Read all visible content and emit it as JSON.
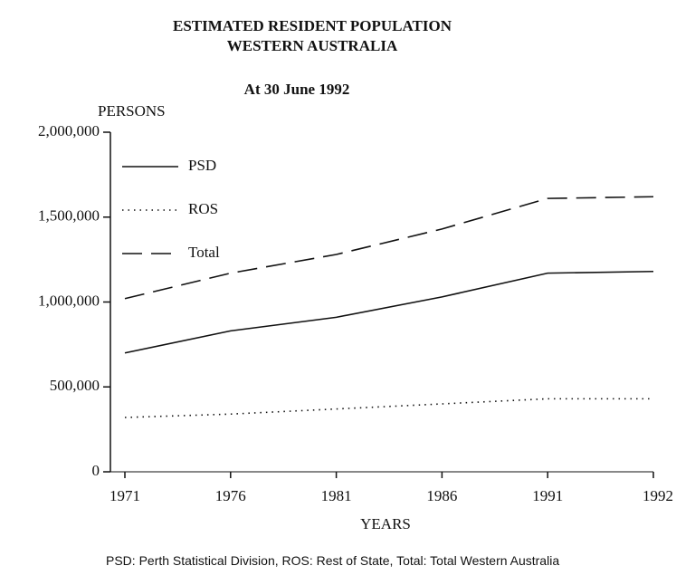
{
  "chart_data": {
    "type": "line",
    "title": [
      "ESTIMATED RESIDENT POPULATION",
      "WESTERN AUSTRALIA"
    ],
    "subtitle": "At 30 June 1992",
    "y_label": "PERSONS",
    "x_label": "YEARS",
    "note": "PSD: Perth Statistical Division, ROS: Rest of State, Total: Total Western Australia",
    "categories": [
      "1971",
      "1976",
      "1981",
      "1986",
      "1991",
      "1992"
    ],
    "series": [
      {
        "name": "PSD",
        "color": "#111111",
        "dash": "solid",
        "values": [
          700000,
          830000,
          910000,
          1030000,
          1170000,
          1180000
        ]
      },
      {
        "name": "ROS",
        "color": "#111111",
        "dash": "dotted",
        "values": [
          320000,
          340000,
          370000,
          400000,
          430000,
          430000
        ]
      },
      {
        "name": "Total",
        "color": "#111111",
        "dash": "dashed",
        "values": [
          1020000,
          1170000,
          1280000,
          1430000,
          1610000,
          1620000
        ]
      }
    ],
    "ylim": [
      0,
      2000000
    ],
    "yticks": [
      0,
      {
        "value": 500000,
        "label": "500,000"
      },
      {
        "value": 1000000,
        "label": "1,000,000"
      },
      {
        "value": 1500000,
        "label": "1,500,000"
      },
      {
        "value": 2000000,
        "label": "2,000,000"
      }
    ],
    "legend": "top-left",
    "grid": false
  }
}
